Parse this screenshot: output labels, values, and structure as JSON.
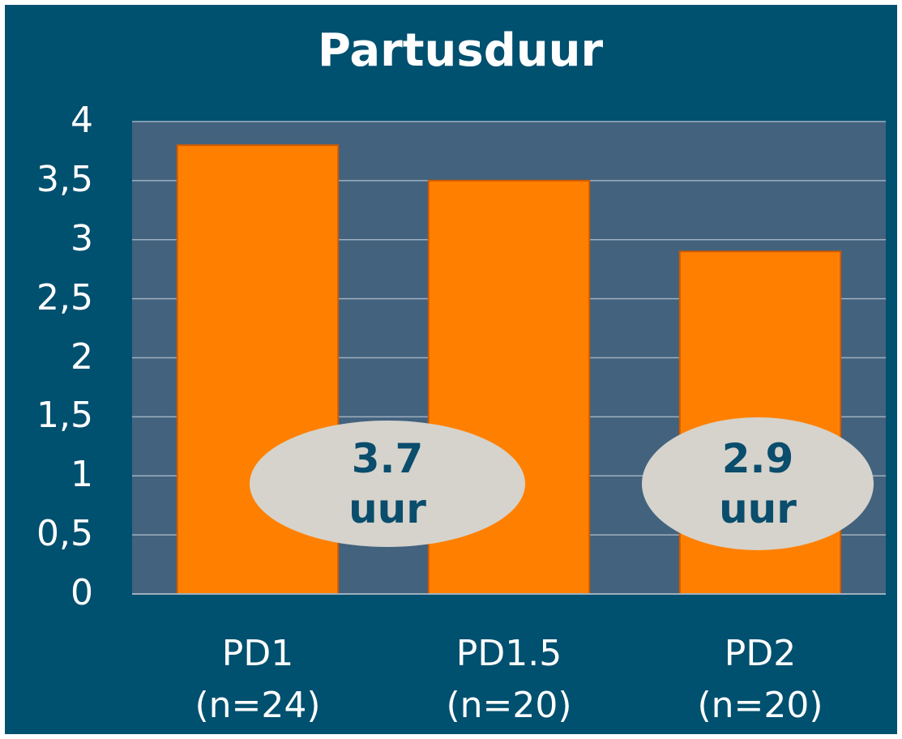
{
  "chart_data": {
    "type": "bar",
    "title": "Partusduur",
    "categories": [
      "PD1\n(n=24)",
      "PD1.5\n(n=20)",
      "PD2\n(n=20)"
    ],
    "values": [
      3.8,
      3.5,
      2.9
    ],
    "color": "#ff8000",
    "ylim": [
      0,
      4
    ],
    "yticks": [
      0,
      {
        "value": 0.5,
        "label": "0,5"
      },
      1,
      {
        "value": 1.5,
        "label": "1,5"
      },
      2,
      {
        "value": 2.5,
        "label": "2,5"
      },
      3,
      {
        "value": 3.5,
        "label": "3,5"
      },
      4
    ],
    "grid": true,
    "annotations": [
      "3.7\nuur",
      "2.9\nuur"
    ]
  }
}
